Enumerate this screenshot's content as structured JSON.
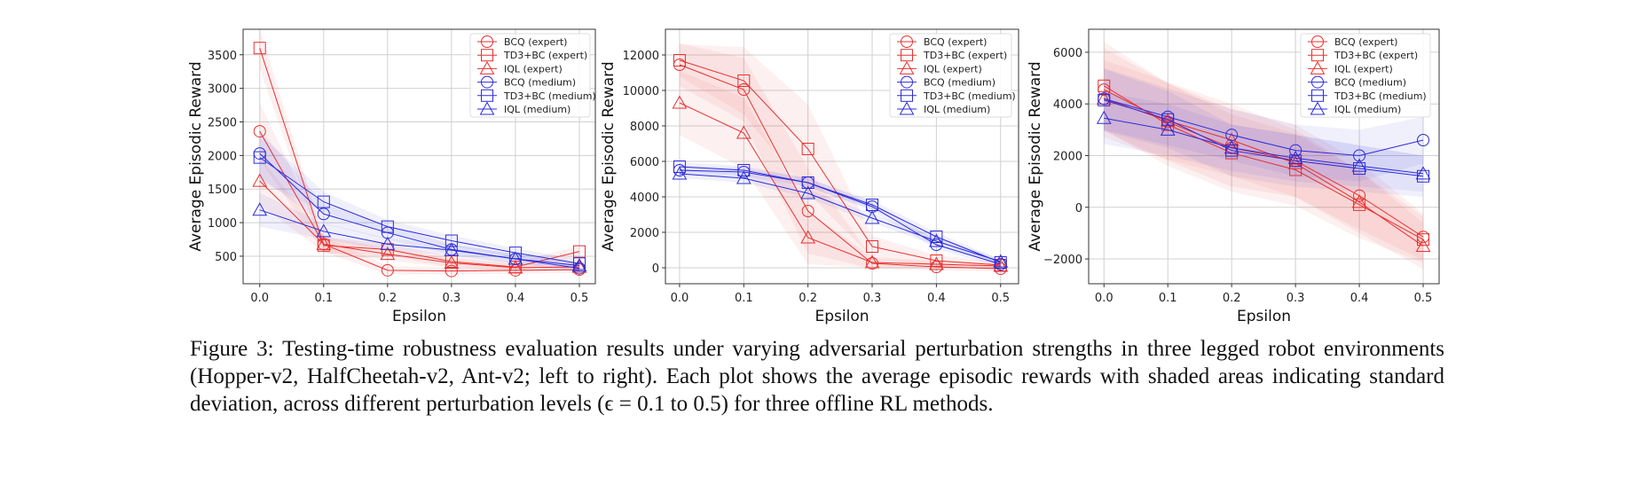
{
  "colors": {
    "expert": "#e8302f",
    "medium": "#2b2bdb"
  },
  "legend_markers": {
    "BCQ": "circle",
    "TD3+BC": "square",
    "IQL": "triangle"
  },
  "caption": "Figure 3: Testing-time robustness evaluation results under varying adversarial perturbation strengths in three legged robot environments (Hopper-v2, HalfCheetah-v2, Ant-v2; left to right). Each plot shows the average episodic rewards with shaded areas indicating standard deviation, across different perturbation levels (ϵ = 0.1 to 0.5) for three offline RL methods.",
  "chart_data": [
    {
      "type": "line",
      "xlabel": "Epsilon",
      "ylabel": "Average Episodic Reward",
      "x": [
        0.0,
        0.1,
        0.2,
        0.3,
        0.4,
        0.5
      ],
      "xticks": [
        "0.0",
        "0.1",
        "0.2",
        "0.3",
        "0.4",
        "0.5"
      ],
      "yticks": [
        500,
        1000,
        1500,
        2000,
        2500,
        3000,
        3500
      ],
      "ylim": [
        90,
        3880
      ],
      "xlim": [
        -0.026,
        0.525
      ],
      "grid": true,
      "legend_placement": "top-right",
      "series": [
        {
          "name": "BCQ (expert)",
          "marker": "circle",
          "group": "expert",
          "values": [
            2360,
            680,
            290,
            280,
            290,
            300
          ],
          "std": [
            420,
            120,
            60,
            50,
            50,
            50
          ]
        },
        {
          "name": "TD3+BC (expert)",
          "marker": "square",
          "group": "expert",
          "values": [
            3600,
            660,
            600,
            420,
            340,
            570
          ],
          "std": [
            300,
            120,
            90,
            80,
            70,
            90
          ]
        },
        {
          "name": "IQL (expert)",
          "marker": "triangle",
          "group": "expert",
          "values": [
            1620,
            680,
            530,
            400,
            330,
            340
          ],
          "std": [
            350,
            120,
            90,
            70,
            60,
            60
          ]
        },
        {
          "name": "BCQ (medium)",
          "marker": "circle",
          "group": "medium",
          "values": [
            2030,
            1130,
            850,
            600,
            460,
            320
          ],
          "std": [
            350,
            150,
            100,
            80,
            70,
            60
          ]
        },
        {
          "name": "TD3+BC (medium)",
          "marker": "square",
          "group": "medium",
          "values": [
            1970,
            1310,
            940,
            730,
            550,
            390
          ],
          "std": [
            350,
            150,
            100,
            80,
            70,
            60
          ]
        },
        {
          "name": "IQL (medium)",
          "marker": "triangle",
          "group": "medium",
          "values": [
            1190,
            870,
            680,
            590,
            460,
            360
          ],
          "std": [
            250,
            120,
            90,
            80,
            70,
            60
          ]
        }
      ]
    },
    {
      "type": "line",
      "xlabel": "Epsilon",
      "ylabel": "Average Episodic Reward",
      "x": [
        0.0,
        0.1,
        0.2,
        0.3,
        0.4,
        0.5
      ],
      "xticks": [
        "0.0",
        "0.1",
        "0.2",
        "0.3",
        "0.4",
        "0.5"
      ],
      "yticks": [
        0,
        2000,
        4000,
        6000,
        8000,
        10000,
        12000
      ],
      "ylim": [
        -900,
        13450
      ],
      "xlim": [
        -0.022,
        0.528
      ],
      "grid": true,
      "legend_placement": "top-right",
      "series": [
        {
          "name": "BCQ (expert)",
          "marker": "circle",
          "group": "expert",
          "values": [
            11450,
            10050,
            3200,
            250,
            50,
            -50
          ],
          "std": [
            1200,
            1800,
            2400,
            300,
            200,
            150
          ]
        },
        {
          "name": "TD3+BC (expert)",
          "marker": "square",
          "group": "expert",
          "values": [
            11700,
            10550,
            6700,
            1200,
            400,
            150
          ],
          "std": [
            900,
            1900,
            2500,
            600,
            300,
            200
          ]
        },
        {
          "name": "IQL (expert)",
          "marker": "triangle",
          "group": "expert",
          "values": [
            9300,
            7600,
            1700,
            300,
            200,
            100
          ],
          "std": [
            1800,
            2000,
            1500,
            300,
            200,
            150
          ]
        },
        {
          "name": "BCQ (medium)",
          "marker": "circle",
          "group": "medium",
          "values": [
            5500,
            5400,
            4800,
            3450,
            1300,
            200
          ],
          "std": [
            250,
            250,
            250,
            250,
            250,
            150
          ]
        },
        {
          "name": "TD3+BC (medium)",
          "marker": "square",
          "group": "medium",
          "values": [
            5700,
            5500,
            4800,
            3550,
            1750,
            300
          ],
          "std": [
            250,
            250,
            250,
            250,
            250,
            150
          ]
        },
        {
          "name": "IQL (medium)",
          "marker": "triangle",
          "group": "medium",
          "values": [
            5300,
            5050,
            4200,
            2800,
            1500,
            350
          ],
          "std": [
            250,
            250,
            250,
            250,
            250,
            150
          ]
        }
      ]
    },
    {
      "type": "line",
      "xlabel": "Epsilon",
      "ylabel": "Average Episodic Reward",
      "x": [
        0.0,
        0.1,
        0.2,
        0.3,
        0.4,
        0.5
      ],
      "xticks": [
        "0.0",
        "0.1",
        "0.2",
        "0.3",
        "0.4",
        "0.5"
      ],
      "yticks": [
        -2000,
        0,
        2000,
        4000,
        6000
      ],
      "ylim": [
        -2960,
        6890
      ],
      "xlim": [
        -0.024,
        0.525
      ],
      "grid": true,
      "legend_placement": "top-right",
      "series": [
        {
          "name": "BCQ (expert)",
          "marker": "circle",
          "group": "expert",
          "values": [
            4550,
            3300,
            2300,
            1800,
            450,
            -1150
          ],
          "std": [
            1600,
            1500,
            1500,
            1400,
            1300,
            900
          ]
        },
        {
          "name": "TD3+BC (expert)",
          "marker": "square",
          "group": "expert",
          "values": [
            4700,
            3200,
            2100,
            1450,
            100,
            -1250
          ],
          "std": [
            1700,
            1600,
            1500,
            1400,
            1300,
            900
          ]
        },
        {
          "name": "IQL (expert)",
          "marker": "triangle",
          "group": "expert",
          "values": [
            4200,
            3350,
            2600,
            1700,
            200,
            -1500
          ],
          "std": [
            1500,
            1500,
            1400,
            1300,
            1200,
            900
          ]
        },
        {
          "name": "BCQ (medium)",
          "marker": "circle",
          "group": "medium",
          "values": [
            4200,
            3500,
            2800,
            2200,
            2000,
            2600
          ],
          "std": [
            1200,
            1100,
            1000,
            1000,
            1000,
            900
          ]
        },
        {
          "name": "TD3+BC (medium)",
          "marker": "square",
          "group": "medium",
          "values": [
            4150,
            3400,
            2200,
            1800,
            1500,
            1200
          ],
          "std": [
            1200,
            1100,
            1000,
            1000,
            900,
            800
          ]
        },
        {
          "name": "IQL (medium)",
          "marker": "triangle",
          "group": "medium",
          "values": [
            3450,
            3000,
            2300,
            1900,
            1600,
            1300
          ],
          "std": [
            1000,
            1000,
            900,
            900,
            800,
            700
          ]
        }
      ]
    }
  ]
}
